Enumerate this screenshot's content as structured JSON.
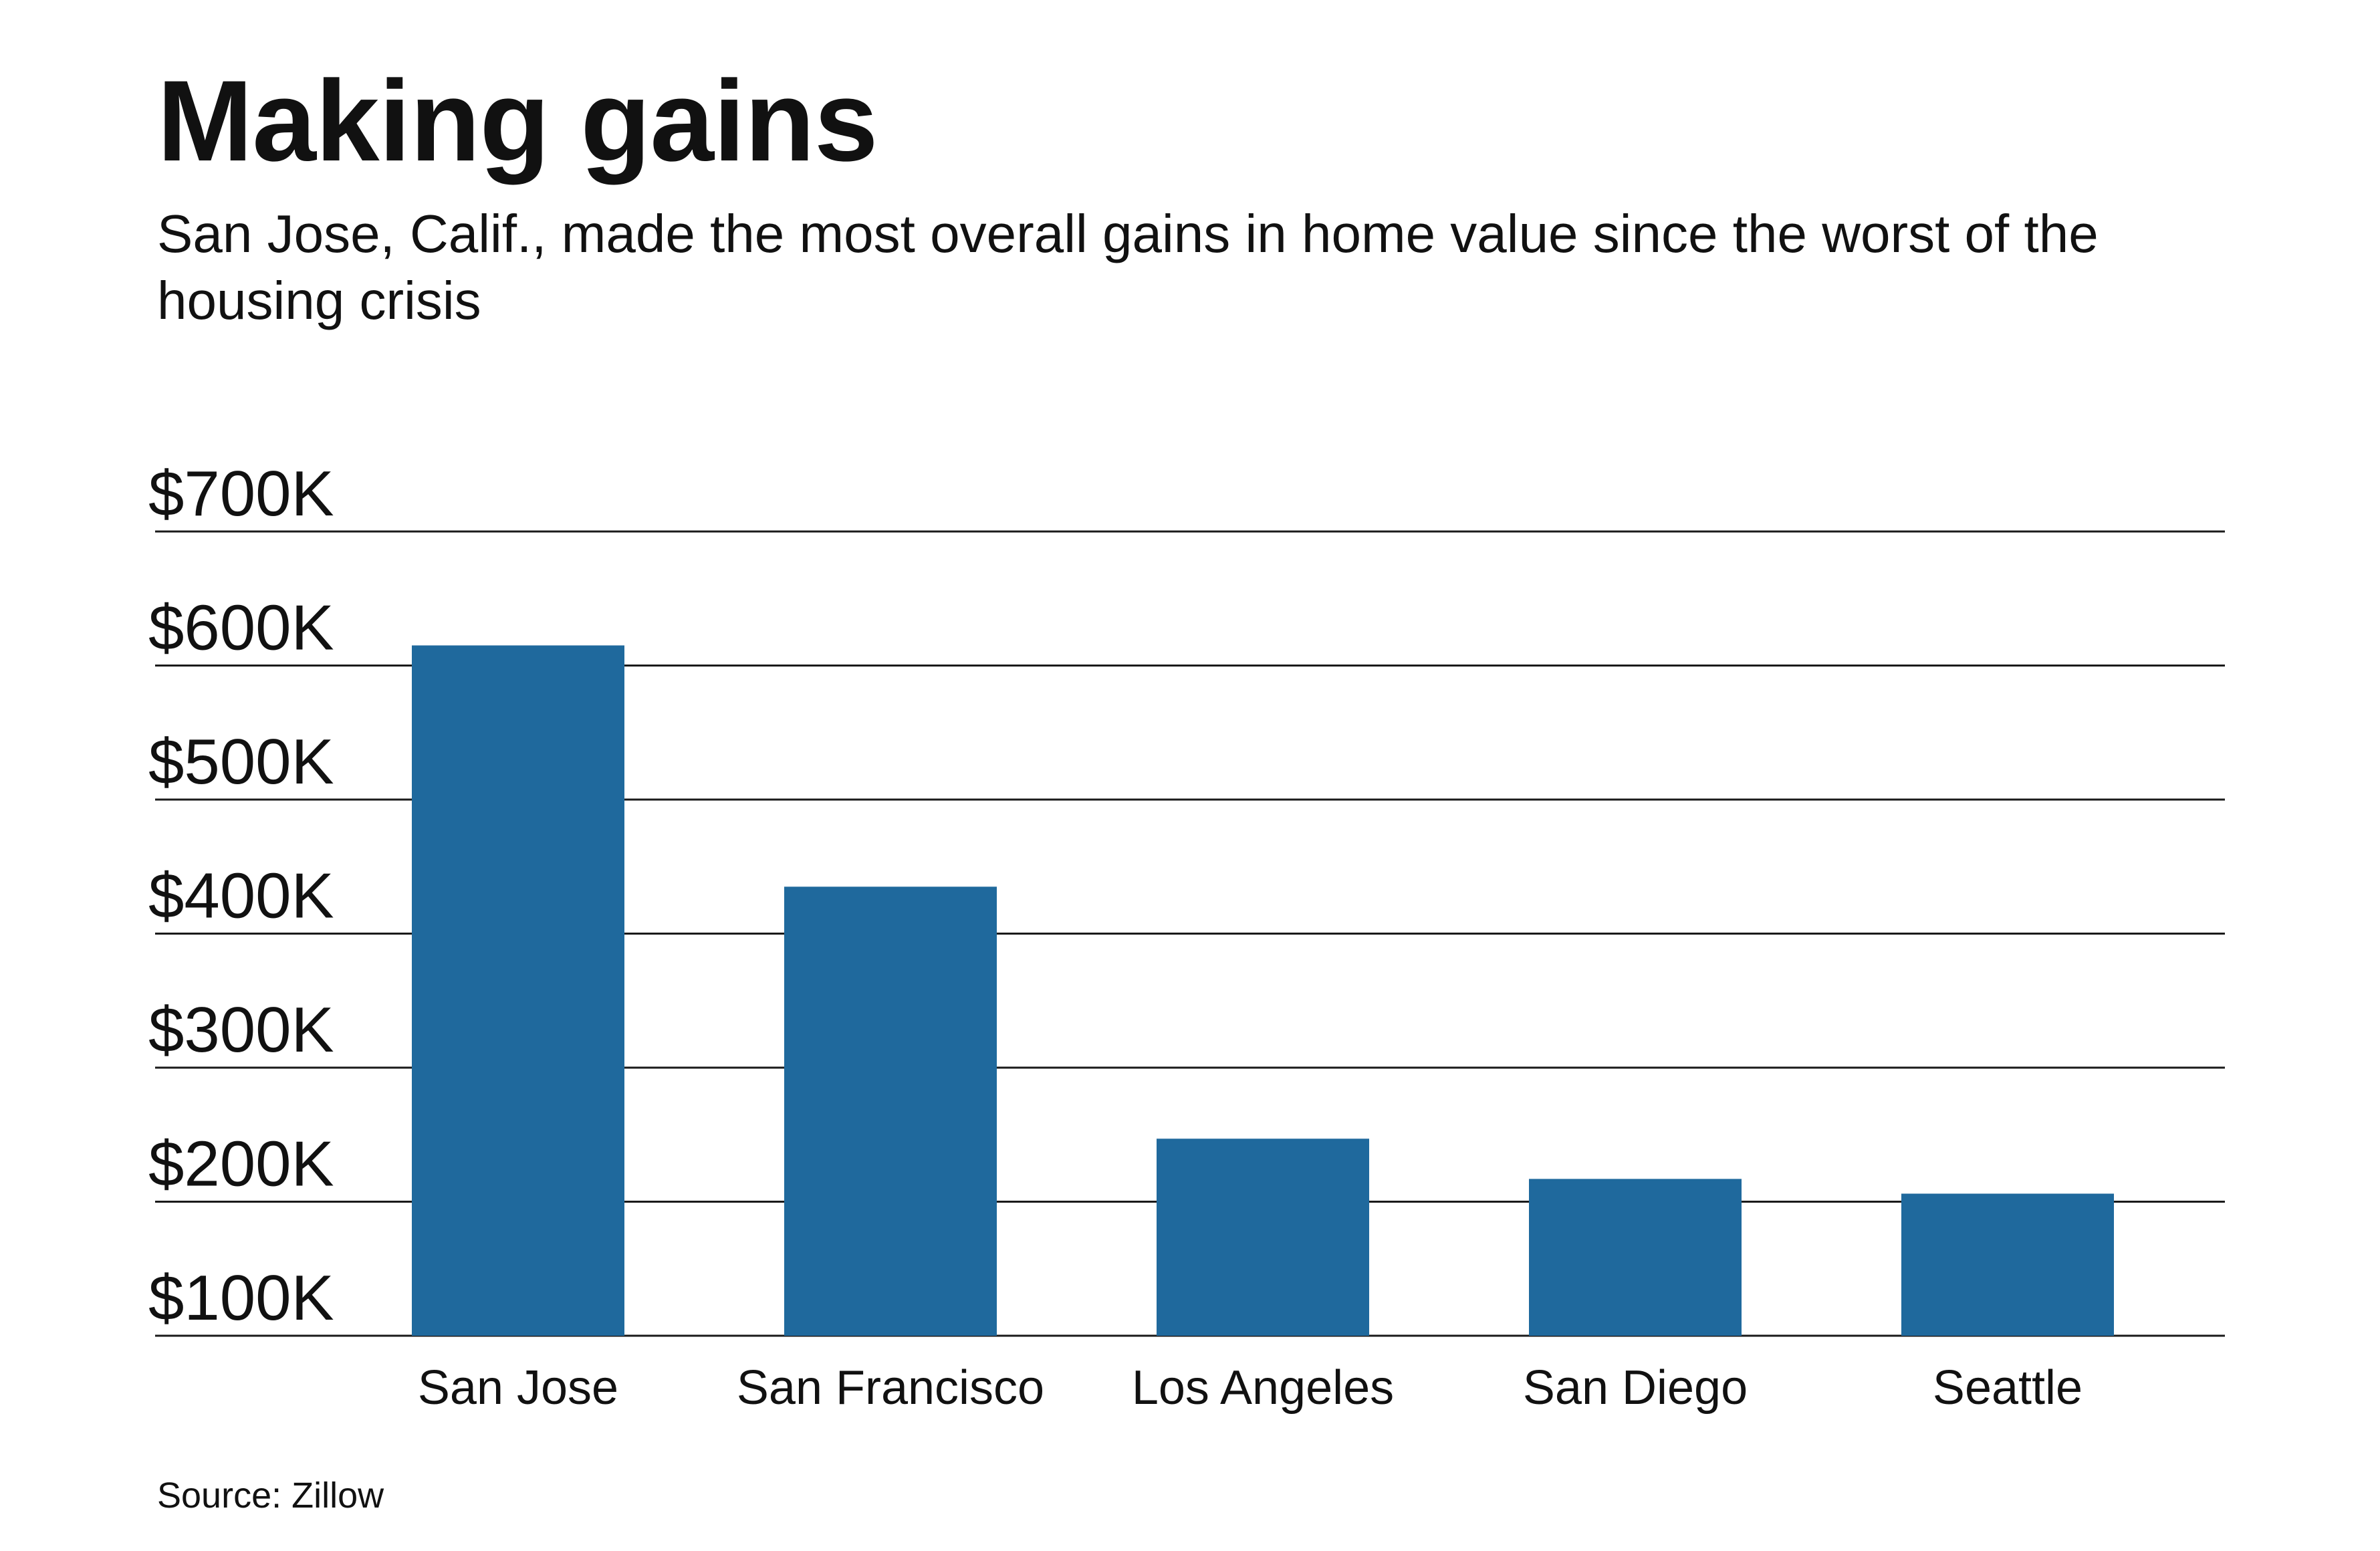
{
  "title": "Making gains",
  "subtitle": "San Jose, Calif., made the most overall gains in home value since the worst of the housing crisis",
  "source": "Source: Zillow",
  "colors": {
    "bar": "#1f699d",
    "gridline": "#1a1a1a",
    "text": "#111111"
  },
  "chart_data": {
    "type": "bar",
    "categories": [
      "San Jose",
      "San Francisco",
      "Los Angeles",
      "San Diego",
      "Seattle"
    ],
    "values": [
      615000,
      435000,
      247000,
      217000,
      206000
    ],
    "yticks": [
      100000,
      200000,
      300000,
      400000,
      500000,
      600000,
      700000
    ],
    "ytick_labels": [
      "$100K",
      "$200K",
      "$300K",
      "$400K",
      "$500K",
      "$600K",
      "$700K"
    ],
    "ylim": [
      100000,
      700000
    ],
    "xlabel": "",
    "ylabel": "",
    "grid": true,
    "legend": "none"
  }
}
